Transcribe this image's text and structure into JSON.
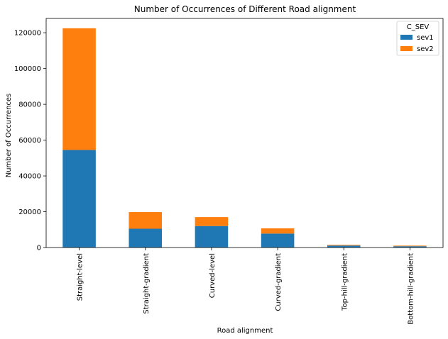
{
  "chart_data": {
    "type": "bar",
    "stacked": true,
    "title": "Number of Occurrences of Different Road alignment",
    "xlabel": "Road alignment",
    "ylabel": "Number of Occurrences",
    "categories": [
      "Straight-level",
      "Straight-gradient",
      "Curved-level",
      "Curved-gradient",
      "Top-hill-gradient",
      "Bottom-hill-gradient"
    ],
    "series": [
      {
        "name": "sev1",
        "color": "#1f77b4",
        "values": [
          54500,
          10500,
          12000,
          7800,
          1100,
          700
        ]
      },
      {
        "name": "sev2",
        "color": "#ff7f0e",
        "values": [
          68000,
          9300,
          5000,
          2900,
          400,
          350
        ]
      }
    ],
    "ylim": [
      0,
      128000
    ],
    "yticks": [
      0,
      20000,
      40000,
      60000,
      80000,
      100000,
      120000
    ],
    "grid": false,
    "legend": {
      "title": "C_SEV",
      "position": "top-right"
    }
  }
}
